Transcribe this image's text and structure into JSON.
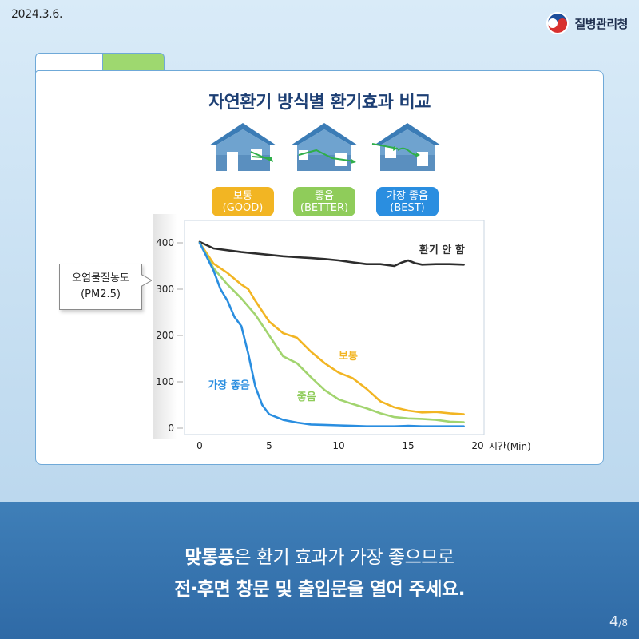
{
  "header": {
    "date": "2024.3.6.",
    "org": "질병관리청"
  },
  "title": "자연환기 방식별 환기효과 비교",
  "methods": [
    {
      "line1": "보통",
      "line2": "(GOOD)",
      "color": "#f2b523"
    },
    {
      "line1": "좋음",
      "line2": "(BETTER)",
      "color": "#8fcc5a"
    },
    {
      "line1": "가장 좋음",
      "line2": "(BEST)",
      "color": "#2a8ee0"
    }
  ],
  "callout": {
    "line1": "오염물질농도",
    "line2": "(PM2.5)"
  },
  "chart_data": {
    "type": "line",
    "ylabel": "오염물질농도 (PM2.5)",
    "xlabel": "시간(Min)",
    "xlim": [
      0,
      20
    ],
    "ylim": [
      0,
      400
    ],
    "xticks": [
      0,
      5,
      10,
      15,
      20
    ],
    "yticks": [
      0,
      100,
      200,
      300,
      400
    ],
    "grid": false,
    "series": [
      {
        "name": "환기 안 함",
        "color": "#2d2d2d",
        "x": [
          0,
          1,
          2,
          3,
          4,
          5,
          6,
          7,
          8,
          9,
          10,
          11,
          12,
          13,
          13.5,
          14,
          14.5,
          15,
          15.5,
          16,
          17,
          18,
          19
        ],
        "y": [
          402,
          388,
          384,
          380,
          377,
          374,
          371,
          369,
          367,
          365,
          362,
          358,
          354,
          354,
          352,
          350,
          357,
          362,
          356,
          353,
          354,
          354,
          353
        ]
      },
      {
        "name": "보통",
        "color": "#f2b523",
        "x": [
          0,
          1,
          2,
          3,
          3.5,
          4,
          5,
          6,
          7,
          8,
          9,
          10,
          11,
          12,
          13,
          14,
          15,
          16,
          17,
          18,
          19
        ],
        "y": [
          400,
          355,
          335,
          310,
          300,
          275,
          230,
          205,
          195,
          165,
          140,
          120,
          108,
          85,
          58,
          45,
          38,
          34,
          35,
          32,
          30
        ]
      },
      {
        "name": "좋음",
        "color": "#a2d46f",
        "x": [
          0,
          1,
          2,
          3,
          4,
          5,
          6,
          7,
          8,
          9,
          10,
          11,
          12,
          13,
          14,
          15,
          16,
          17,
          18,
          19
        ],
        "y": [
          400,
          345,
          310,
          280,
          245,
          200,
          155,
          140,
          110,
          82,
          62,
          52,
          43,
          32,
          24,
          21,
          20,
          18,
          14,
          13
        ]
      },
      {
        "name": "가장 좋음",
        "color": "#2a8ee0",
        "x": [
          0,
          1,
          1.5,
          2,
          2.5,
          3,
          3.5,
          4,
          4.5,
          5,
          6,
          7,
          8,
          9,
          10,
          11,
          12,
          13,
          14,
          15,
          16,
          17,
          18,
          19
        ],
        "y": [
          400,
          340,
          300,
          275,
          240,
          220,
          160,
          90,
          50,
          30,
          18,
          12,
          8,
          7,
          6,
          5,
          4,
          4,
          4,
          5,
          4,
          4,
          4,
          4
        ]
      }
    ],
    "series_labels": [
      {
        "text": "환기 안 함",
        "x": 15.8,
        "y": 378,
        "color": "#2d2d2d"
      },
      {
        "text": "보통",
        "x": 10,
        "y": 148,
        "color": "#f2b523"
      },
      {
        "text": "좋음",
        "x": 7,
        "y": 60,
        "color": "#8fcc5a"
      },
      {
        "text": "가장 좋음",
        "x": 0.6,
        "y": 85,
        "color": "#2a8ee0"
      }
    ]
  },
  "message": {
    "line1_bold": "맞통풍",
    "line1_rest": "은 환기 효과가 가장 좋으므로",
    "line2": "전·후면 창문 및 출입문을 열어 주세요."
  },
  "page": {
    "current": "4",
    "total": "/8"
  }
}
